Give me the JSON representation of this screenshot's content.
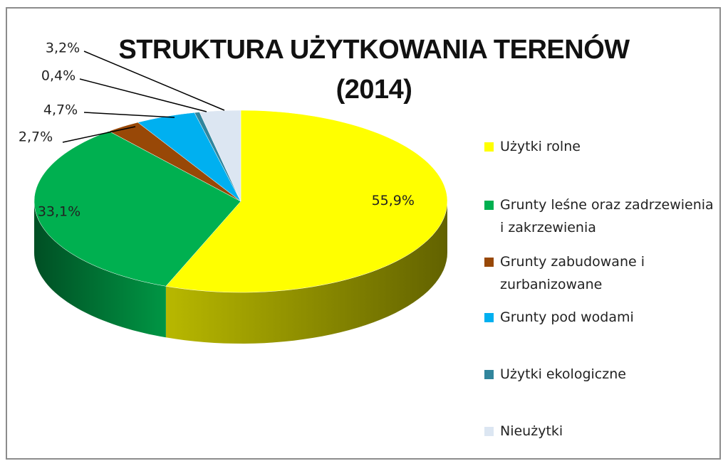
{
  "chart_data": {
    "type": "pie3d",
    "title": "STRUKTURA UŻYTKOWANIA TERENÓW (2014)",
    "categories": [
      "Użytki rolne",
      "Grunty leśne oraz zadrzewienia i zakrzewienia",
      "Grunty zabudowane i zurbanizowane",
      "Grunty pod wodami",
      "Użytki ekologiczne",
      "Nieużytki"
    ],
    "values": [
      55.9,
      33.1,
      2.7,
      4.7,
      0.4,
      3.2
    ],
    "value_labels": [
      "55,9%",
      "33,1%",
      "2,7%",
      "4,7%",
      "0,4%",
      "3,2%"
    ],
    "colors": [
      "#ffff00",
      "#00b050",
      "#984807",
      "#00b0f0",
      "#31859c",
      "#dce6f2"
    ],
    "legend": "right"
  }
}
